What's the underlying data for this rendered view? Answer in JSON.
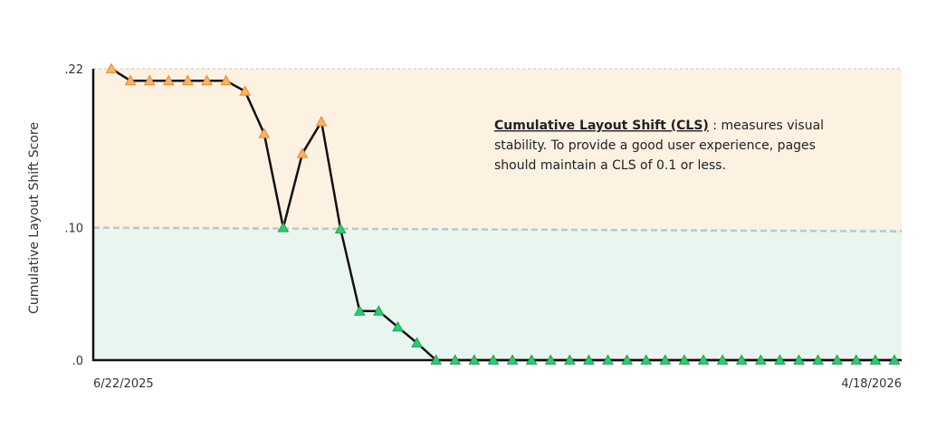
{
  "chart_data": {
    "type": "line",
    "title": "",
    "xlabel": "",
    "ylabel": "Cumulative Layout Shift Score",
    "x_tick_labels": [
      "6/22/2025",
      "4/18/2026"
    ],
    "y_ticks": [
      {
        "value": 0,
        "label": ".0"
      },
      {
        "value": 0.1,
        "label": ".10"
      },
      {
        "value": 0.22,
        "label": ".22"
      }
    ],
    "ylim": [
      0,
      0.22
    ],
    "threshold": 0.1,
    "grid": false,
    "legend": "none",
    "annotation": {
      "title": "Cumulative Layout Shift (CLS)",
      "separator": " : ",
      "text_lines": [
        "measures visual",
        "stability. To provide a good user experience, pages",
        "should maintain a CLS of 0.1 or less."
      ]
    },
    "colors": {
      "poor_zone": "#fdf1e2",
      "good_zone": "#e9f6f0",
      "poor_marker": "#f8b36a",
      "good_marker": "#2ecc71",
      "line": "#111111",
      "threshold_line": "#c4c4c4"
    },
    "series": [
      {
        "values": [
          0.22,
          0.211,
          0.211,
          0.211,
          0.211,
          0.211,
          0.211,
          0.203,
          0.171,
          0.1,
          0.156,
          0.18,
          0.099,
          0.037,
          0.037,
          0.025,
          0.013,
          0.0,
          0.0,
          0.0,
          0.0,
          0.0,
          0.0,
          0.0,
          0.0,
          0.0,
          0.0,
          0.0,
          0.0,
          0.0,
          0.0,
          0.0,
          0.0,
          0.0,
          0.0,
          0.0,
          0.0,
          0.0,
          0.0,
          0.0,
          0.0,
          0.0
        ]
      }
    ]
  }
}
